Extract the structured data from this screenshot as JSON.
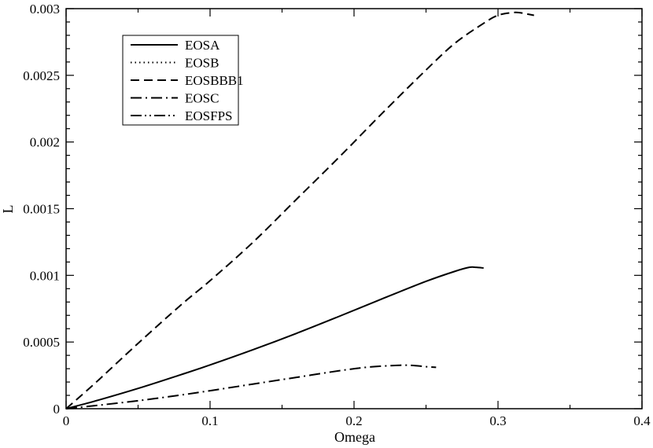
{
  "chart_data": {
    "type": "line",
    "xlabel": "Omega",
    "ylabel": "L",
    "xlim": [
      0,
      0.4
    ],
    "ylim": [
      0,
      0.003
    ],
    "x_ticks": [
      "0",
      "0.1",
      "0.2",
      "0.3",
      "0.4"
    ],
    "y_ticks": [
      "0",
      "0.0005",
      "0.001",
      "0.0015",
      "0.002",
      "0.0025",
      "0.003"
    ],
    "grid": false,
    "legend_position": "top-left",
    "series": [
      {
        "name": "EOSA",
        "style": "solid",
        "color": "#000000",
        "x": [
          0,
          0.02,
          0.05,
          0.08,
          0.1,
          0.13,
          0.16,
          0.19,
          0.22,
          0.25,
          0.27,
          0.28,
          0.285,
          0.29
        ],
        "y": [
          0,
          5.7e-05,
          0.000152,
          0.000256,
          0.000328,
          0.000443,
          0.000565,
          0.000694,
          0.000826,
          0.000955,
          0.00103,
          0.00106,
          0.00106,
          0.001055
        ]
      },
      {
        "name": "EOSB",
        "style": "dotted",
        "color": "#000000",
        "x": [],
        "y": []
      },
      {
        "name": "EOSBBB1",
        "style": "dashed",
        "color": "#000000",
        "x": [
          0,
          0.02,
          0.05,
          0.08,
          0.1,
          0.13,
          0.16,
          0.19,
          0.22,
          0.25,
          0.27,
          0.29,
          0.3,
          0.31,
          0.315,
          0.32,
          0.325
        ],
        "y": [
          0,
          0.00019,
          0.00049,
          0.00078,
          0.00096,
          0.00125,
          0.00157,
          0.00189,
          0.00222,
          0.00254,
          0.00274,
          0.00289,
          0.00295,
          0.00297,
          0.00297,
          0.00296,
          0.00295
        ]
      },
      {
        "name": "EOSC",
        "style": "dash-dot",
        "color": "#000000",
        "x": [
          0,
          0.02,
          0.05,
          0.08,
          0.1,
          0.13,
          0.16,
          0.19,
          0.21,
          0.23,
          0.24,
          0.25,
          0.257
        ],
        "y": [
          0,
          2.3e-05,
          6e-05,
          0.000103,
          0.000135,
          0.000185,
          0.000235,
          0.000285,
          0.000312,
          0.000325,
          0.000325,
          0.000315,
          0.00031
        ]
      },
      {
        "name": "EOSFPS",
        "style": "dash-dot-dot",
        "color": "#000000",
        "x": [],
        "y": []
      }
    ]
  }
}
